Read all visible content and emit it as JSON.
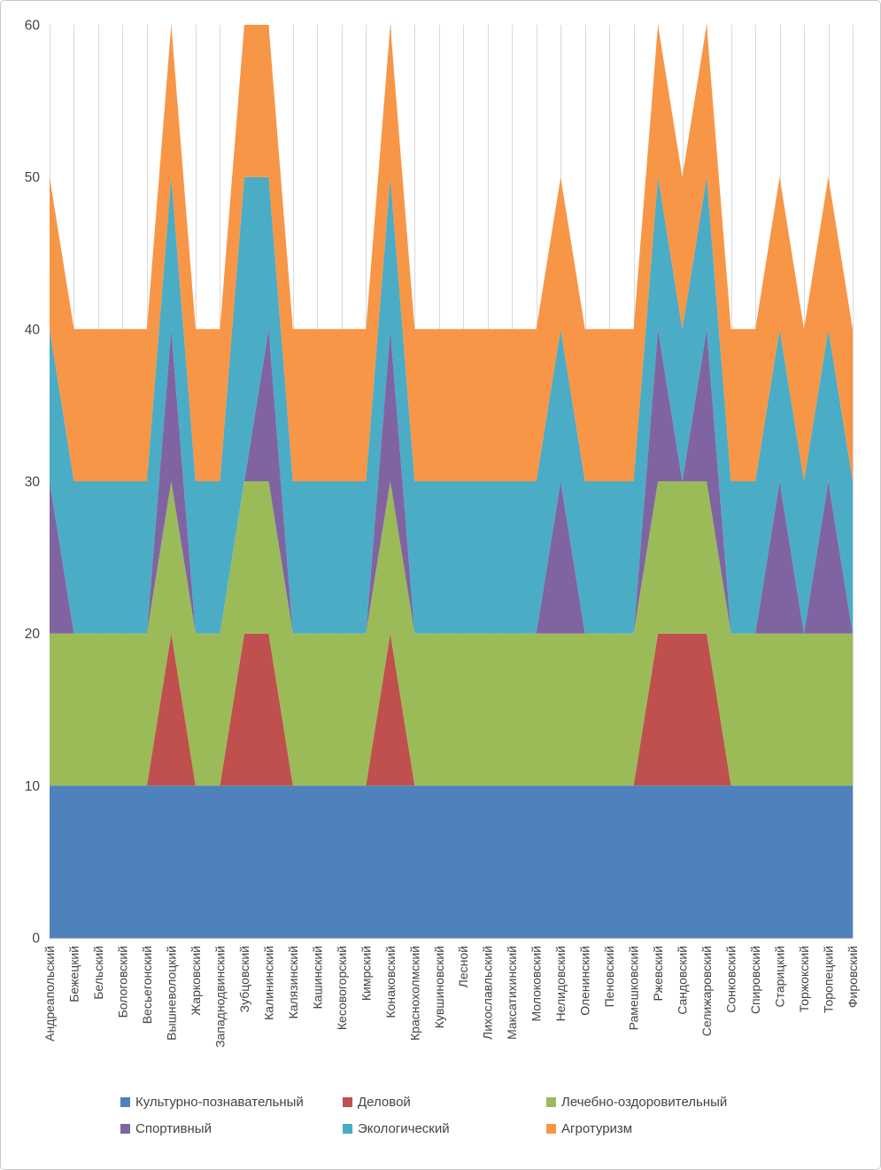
{
  "chart_data": {
    "type": "area",
    "stacked": true,
    "title": "",
    "xlabel": "",
    "ylabel": "",
    "categories": [
      "Андреапольский",
      "Бежецкий",
      "Бельский",
      "Бологовский",
      "Весьегонский",
      "Вышневолоцкий",
      "Жарковский",
      "Западнодвинский",
      "Зубцовский",
      "Калининский",
      "Калязинский",
      "Кашинский",
      "Кесовогорский",
      "Кимрский",
      "Конаковский",
      "Краснохолмский",
      "Кувшиновский",
      "Лесной",
      "Лихославльский",
      "Максатихинский",
      "Молоковский",
      "Нелидовский",
      "Оленинский",
      "Пеновский",
      "Рамешковский",
      "Ржевский",
      "Сандовский",
      "Селижаровский",
      "Сонковский",
      "Спировский",
      "Старицкий",
      "Торжокский",
      "Торопецкий",
      "Фировский"
    ],
    "series": [
      {
        "name": "Культурно-познавательный",
        "color": "#4F81BD",
        "values": [
          10,
          10,
          10,
          10,
          10,
          10,
          10,
          10,
          10,
          10,
          10,
          10,
          10,
          10,
          10,
          10,
          10,
          10,
          10,
          10,
          10,
          10,
          10,
          10,
          10,
          10,
          10,
          10,
          10,
          10,
          10,
          10,
          10,
          10
        ]
      },
      {
        "name": "Деловой",
        "color": "#C0504D",
        "values": [
          0,
          0,
          0,
          0,
          0,
          10,
          0,
          0,
          10,
          10,
          0,
          0,
          0,
          0,
          10,
          0,
          0,
          0,
          0,
          0,
          0,
          0,
          0,
          0,
          0,
          10,
          10,
          10,
          0,
          0,
          0,
          0,
          0,
          0
        ]
      },
      {
        "name": "Лечебно-оздоровительный",
        "color": "#9BBB59",
        "values": [
          10,
          10,
          10,
          10,
          10,
          10,
          10,
          10,
          10,
          10,
          10,
          10,
          10,
          10,
          10,
          10,
          10,
          10,
          10,
          10,
          10,
          10,
          10,
          10,
          10,
          10,
          10,
          10,
          10,
          10,
          10,
          10,
          10,
          10
        ]
      },
      {
        "name": "Спортивный",
        "color": "#8064A2",
        "values": [
          10,
          0,
          0,
          0,
          0,
          10,
          0,
          0,
          0,
          10,
          0,
          0,
          0,
          0,
          10,
          0,
          0,
          0,
          0,
          0,
          0,
          10,
          0,
          0,
          0,
          10,
          0,
          10,
          0,
          0,
          10,
          0,
          10,
          0
        ]
      },
      {
        "name": "Экологический",
        "color": "#4BACC6",
        "values": [
          10,
          10,
          10,
          10,
          10,
          10,
          10,
          10,
          20,
          10,
          10,
          10,
          10,
          10,
          10,
          10,
          10,
          10,
          10,
          10,
          10,
          10,
          10,
          10,
          10,
          10,
          10,
          10,
          10,
          10,
          10,
          10,
          10,
          10
        ]
      },
      {
        "name": "Агротуризм",
        "color": "#F79646",
        "values": [
          10,
          10,
          10,
          10,
          10,
          10,
          10,
          10,
          10,
          10,
          10,
          10,
          10,
          10,
          10,
          10,
          10,
          10,
          10,
          10,
          10,
          10,
          10,
          10,
          10,
          10,
          10,
          10,
          10,
          10,
          10,
          10,
          10,
          10
        ]
      }
    ],
    "y_axis": {
      "min": 0,
      "max": 60,
      "step": 10,
      "ticks": [
        0,
        10,
        20,
        30,
        40,
        50,
        60
      ]
    },
    "x_axis": {
      "label_rotation": -90
    },
    "gridlines": "vertical-only",
    "legend": {
      "position": "bottom",
      "rows": [
        [
          "Культурно-познавательный",
          "Деловой",
          "Лечебно-оздоровительный"
        ],
        [
          "Спортивный",
          "Экологический",
          "Агротуризм"
        ]
      ]
    }
  },
  "colors": {
    "grid": "#D9D9D9",
    "axis": "#A6A6A6",
    "text": "#444444",
    "background": "#FFFFFF",
    "frame_border": "#C9C9C9"
  }
}
